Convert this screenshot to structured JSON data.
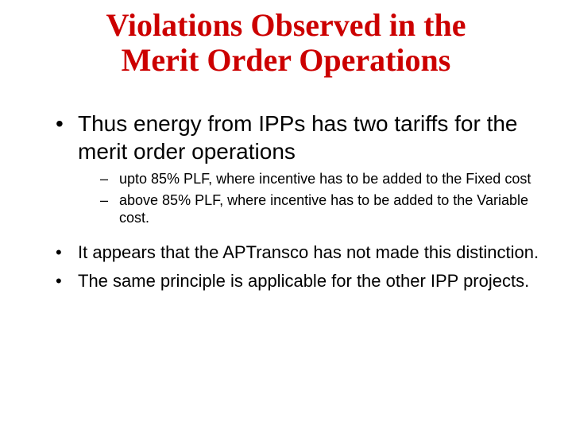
{
  "colors": {
    "title": "#cc0000",
    "body": "#000000",
    "background": "#ffffff"
  },
  "fonts": {
    "title_family": "Times New Roman",
    "body_family": "Arial",
    "title_size_pt": 40,
    "bullet1_big_size_pt": 28,
    "bullet2_size_pt": 18,
    "bullet1_med_size_pt": 22
  },
  "title_line1": "Violations Observed in the",
  "title_line2": "Merit Order Operations",
  "bullets": [
    {
      "text": "Thus energy from IPPs has two tariffs for the merit order operations",
      "size_key": "big",
      "sub": [
        "upto 85% PLF, where incentive has to be added to the Fixed cost",
        "above 85% PLF, where incentive has to be added to the Variable cost."
      ]
    },
    {
      "text": "It appears that the APTransco has not made this distinction.",
      "size_key": "med",
      "sub": []
    },
    {
      "text": "The same principle is applicable for the other IPP projects.",
      "size_key": "med",
      "sub": []
    }
  ]
}
